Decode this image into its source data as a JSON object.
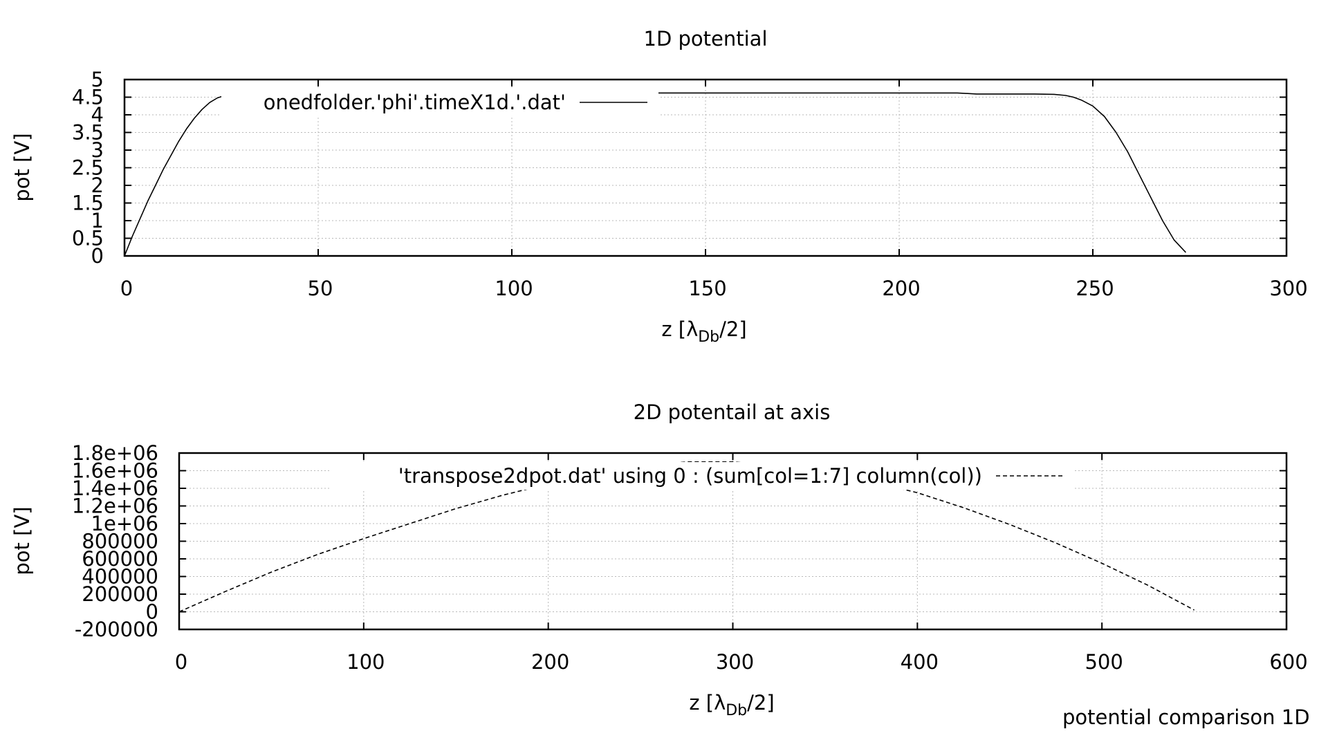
{
  "chart_data": [
    {
      "type": "line",
      "title": "1D potential",
      "xlabel": "z [λ",
      "xlabel_sub": "Db",
      "xlabel_suffix": "/2]",
      "ylabel": "pot [V]",
      "xlim": [
        0,
        300
      ],
      "ylim": [
        0,
        5
      ],
      "xticks": [
        0,
        50,
        100,
        150,
        200,
        250,
        300
      ],
      "yticks": [
        0,
        0.5,
        1,
        1.5,
        2,
        2.5,
        3,
        3.5,
        4,
        4.5,
        5
      ],
      "grid": true,
      "legend_position": "top-left",
      "series": [
        {
          "name": "onedfolder.'phi'.timeX1d.'.dat'",
          "style": "solid",
          "x": [
            0,
            2,
            4,
            6,
            8,
            10,
            12,
            14,
            16,
            18,
            20,
            22,
            24,
            26,
            28,
            30,
            35,
            40,
            50,
            60,
            80,
            100,
            120,
            130,
            150,
            180,
            200,
            215,
            220,
            235,
            240,
            243,
            245,
            247,
            250,
            253,
            256,
            259,
            262,
            265,
            268,
            271,
            274
          ],
          "y": [
            0,
            0.55,
            1.05,
            1.55,
            2.0,
            2.45,
            2.85,
            3.25,
            3.6,
            3.9,
            4.15,
            4.35,
            4.48,
            4.55,
            4.58,
            4.59,
            4.6,
            4.6,
            4.61,
            4.61,
            4.61,
            4.61,
            4.61,
            4.62,
            4.62,
            4.62,
            4.62,
            4.62,
            4.59,
            4.59,
            4.58,
            4.55,
            4.5,
            4.42,
            4.25,
            3.95,
            3.5,
            2.95,
            2.3,
            1.65,
            1.0,
            0.45,
            0.1
          ]
        }
      ]
    },
    {
      "type": "line",
      "title": "2D potentail at axis",
      "xlabel": "z [λ",
      "xlabel_sub": "Db",
      "xlabel_suffix": "/2]",
      "ylabel": "pot [V]",
      "xlim": [
        0,
        600
      ],
      "ylim": [
        -200000,
        1800000
      ],
      "xticks": [
        0,
        100,
        200,
        300,
        400,
        500,
        600
      ],
      "yticks": [
        -200000,
        0,
        200000,
        400000,
        600000,
        800000,
        1000000,
        1200000,
        1400000,
        1600000,
        1800000
      ],
      "ytick_labels": [
        "-200000",
        "0",
        "200000",
        "400000",
        "600000",
        "800000",
        "1e+06",
        "1.2e+06",
        "1.4e+06",
        "1.6e+06",
        "1.8e+06"
      ],
      "grid": true,
      "legend_position": "top-center",
      "series": [
        {
          "name": "'transpose2dpot.dat' using 0 : (sum[col=1:7] column(col))",
          "style": "dashed",
          "x": [
            0,
            25,
            50,
            75,
            100,
            125,
            150,
            175,
            200,
            225,
            250,
            275,
            300,
            325,
            350,
            375,
            400,
            425,
            450,
            475,
            500,
            525,
            550
          ],
          "y": [
            0,
            230000,
            450000,
            650000,
            830000,
            1000000,
            1170000,
            1320000,
            1450000,
            1560000,
            1650000,
            1700000,
            1700000,
            1660000,
            1580000,
            1480000,
            1350000,
            1180000,
            990000,
            780000,
            550000,
            300000,
            20000
          ]
        }
      ]
    }
  ],
  "footer_text": "potential comparison 1D"
}
